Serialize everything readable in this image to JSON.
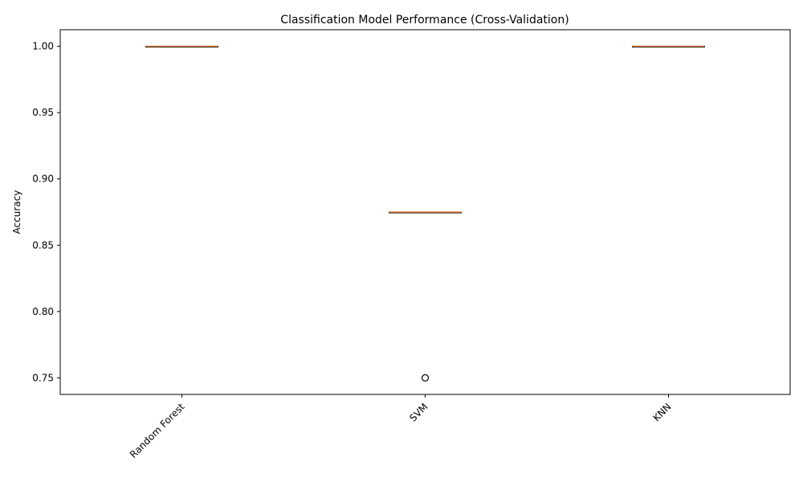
{
  "chart_data": {
    "type": "box",
    "title": "Classification Model Performance (Cross-Validation)",
    "xlabel": "",
    "ylabel": "Accuracy",
    "ylim": [
      0.7375,
      1.0125
    ],
    "yticks": [
      0.75,
      0.8,
      0.85,
      0.9,
      0.95,
      1.0
    ],
    "ytick_labels": [
      "0.75",
      "0.80",
      "0.85",
      "0.90",
      "0.95",
      "1.00"
    ],
    "categories": [
      "Random Forest",
      "SVM",
      "KNN"
    ],
    "boxes": [
      {
        "category": "Random Forest",
        "min": 1.0,
        "q1": 1.0,
        "median": 1.0,
        "q3": 1.0,
        "max": 1.0,
        "outliers": []
      },
      {
        "category": "SVM",
        "min": 0.875,
        "q1": 0.875,
        "median": 0.875,
        "q3": 0.875,
        "max": 0.875,
        "outliers": [
          0.75
        ]
      },
      {
        "category": "KNN",
        "min": 1.0,
        "q1": 1.0,
        "median": 1.0,
        "q3": 1.0,
        "max": 1.0,
        "outliers": []
      }
    ],
    "xtick_rotation_deg": 45,
    "grid": false,
    "colors": {
      "box": "#000000",
      "median": "#e07b39",
      "whisker": "#000000",
      "outlier": "#000000"
    }
  }
}
